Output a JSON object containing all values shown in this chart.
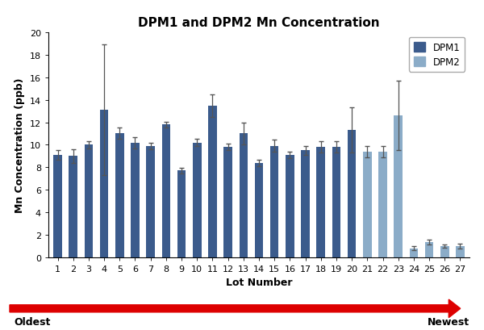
{
  "title": "DPM1 and DPM2 Mn Concentration",
  "xlabel": "Lot Number",
  "ylabel": "Mn Concentration (ppb)",
  "ylim": [
    0,
    20
  ],
  "yticks": [
    0,
    2,
    4,
    6,
    8,
    10,
    12,
    14,
    16,
    18,
    20
  ],
  "lot_numbers": [
    1,
    2,
    3,
    4,
    5,
    6,
    7,
    8,
    9,
    10,
    11,
    12,
    13,
    14,
    15,
    16,
    17,
    18,
    19,
    20,
    21,
    22,
    23,
    24,
    25,
    26,
    27
  ],
  "dpm1_values": [
    9.1,
    9.0,
    10.0,
    13.1,
    11.0,
    10.2,
    9.9,
    11.8,
    7.7,
    10.2,
    13.5,
    9.8,
    11.0,
    8.4,
    9.9,
    9.1,
    9.5,
    9.8,
    9.8,
    11.3,
    null,
    null,
    null,
    null,
    null,
    null,
    null
  ],
  "dpm1_errors": [
    0.4,
    0.6,
    0.3,
    5.8,
    0.5,
    0.5,
    0.3,
    0.25,
    0.25,
    0.3,
    1.0,
    0.3,
    1.0,
    0.3,
    0.55,
    0.3,
    0.4,
    0.5,
    0.5,
    2.0,
    null,
    null,
    null,
    null,
    null,
    null,
    null
  ],
  "dpm2_values": [
    null,
    null,
    null,
    null,
    null,
    null,
    null,
    null,
    null,
    null,
    null,
    null,
    null,
    null,
    null,
    null,
    null,
    null,
    null,
    null,
    9.4,
    9.4,
    12.6,
    0.8,
    1.35,
    1.0,
    1.0
  ],
  "dpm2_errors": [
    null,
    null,
    null,
    null,
    null,
    null,
    null,
    null,
    null,
    null,
    null,
    null,
    null,
    null,
    null,
    null,
    null,
    null,
    null,
    null,
    0.5,
    0.5,
    3.1,
    0.2,
    0.2,
    0.15,
    0.2
  ],
  "dpm1_color": "#3B5B8C",
  "dpm2_color": "#8BACC8",
  "dpm1_label": "DPM1",
  "dpm2_label": "DPM2",
  "arrow_color": "#DD0000",
  "oldest_label": "Oldest",
  "newest_label": "Newest",
  "background_color": "#FFFFFF",
  "plot_bg_color": "#FFFFFF",
  "title_fontsize": 11,
  "label_fontsize": 9,
  "tick_fontsize": 8
}
